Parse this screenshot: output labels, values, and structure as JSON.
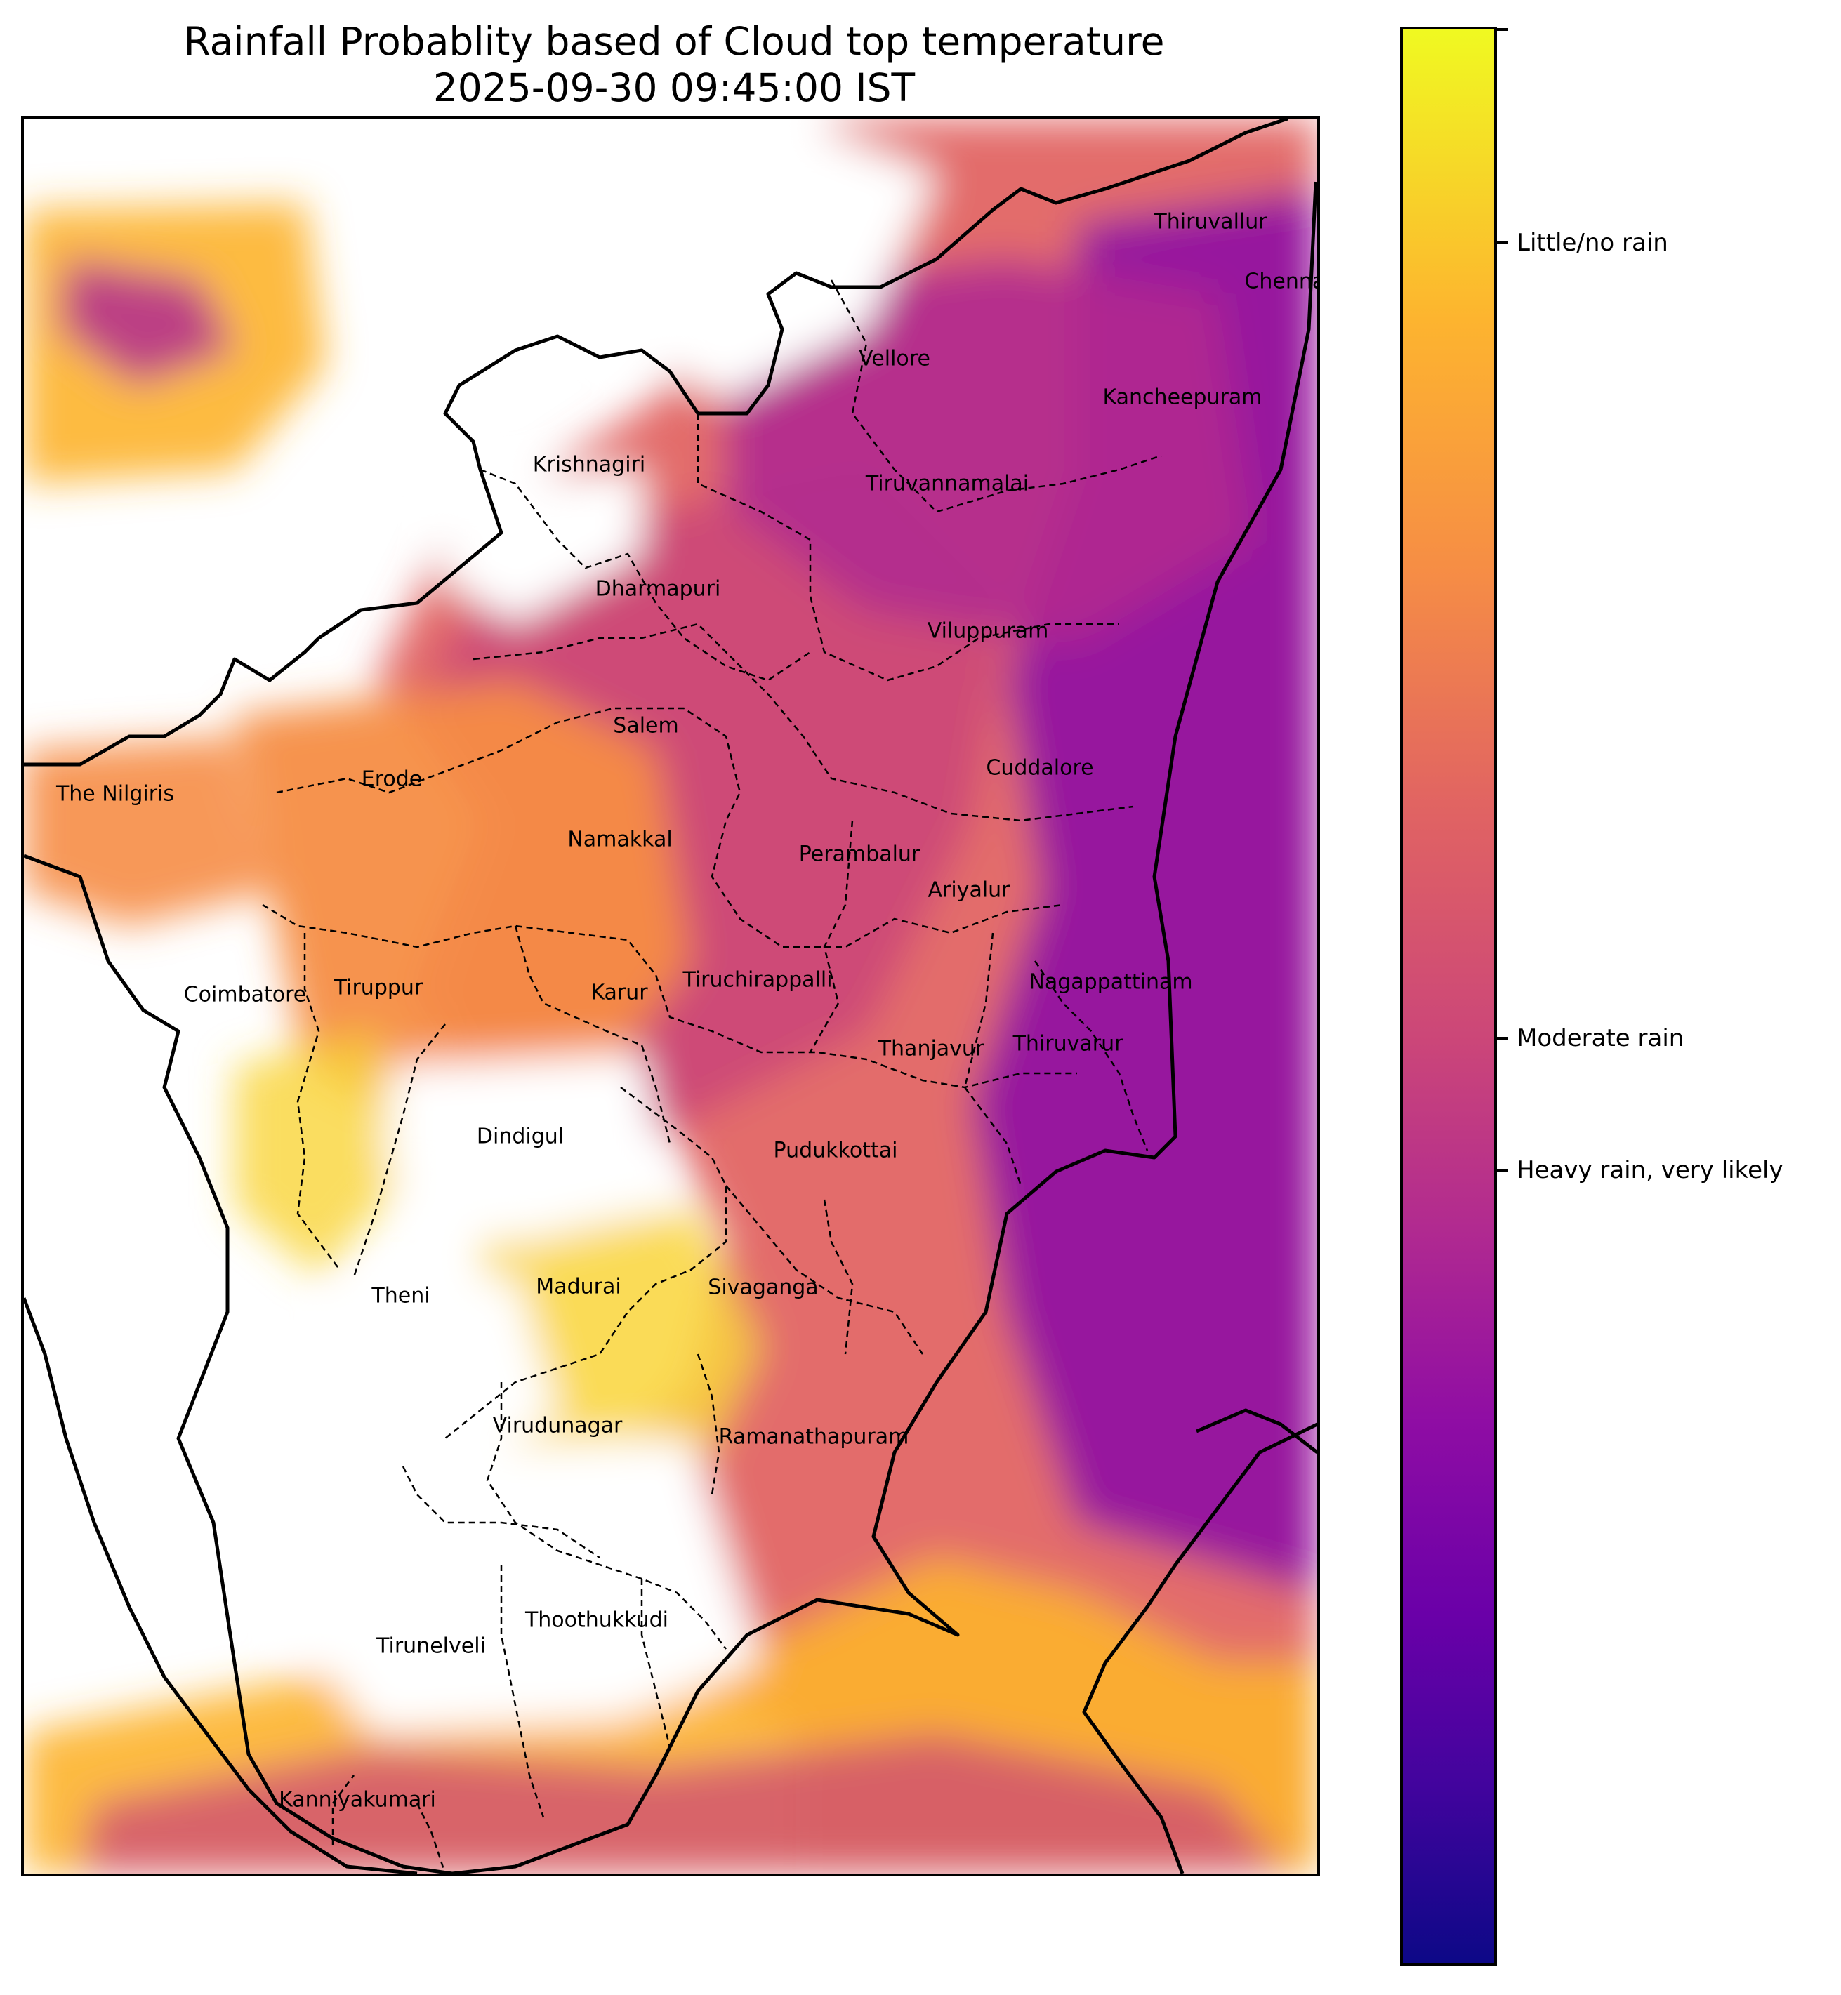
{
  "title": {
    "line1": "Rainfall Probablity based of Cloud top temperature",
    "line2": "2025-09-30 09:45:00 IST"
  },
  "colorbar": {
    "colors": [
      "#f0f921",
      "#fdb42f",
      "#f68d45",
      "#e16462",
      "#cc4778",
      "#b12a90",
      "#8f0da4",
      "#6a00a8",
      "#41049d",
      "#0d0887"
    ],
    "ticks": [
      {
        "label": "",
        "value": 1.0
      },
      {
        "label": "Little/no rain",
        "value": 0.89
      },
      {
        "label": "Moderate rain",
        "value": 0.476
      },
      {
        "label": "Heavy rain, very likely",
        "value": 0.408
      }
    ]
  },
  "districts": [
    "Thiruvallur",
    "Chennai",
    "Vellore",
    "Kancheepuram",
    "Krishnagiri",
    "Tiruvannamalai",
    "Dharmapuri",
    "Viluppuram",
    "Salem",
    "Cuddalore",
    "Erode",
    "The Nilgiris",
    "Namakkal",
    "Perambalur",
    "Ariyalur",
    "Nagappattinam",
    "Karur",
    "Tiruchirappalli",
    "Tiruppur",
    "Coimbatore",
    "Thanjavur",
    "Thiruvarur",
    "Dindigul",
    "Pudukkottai",
    "Theni",
    "Madurai",
    "Sivaganga",
    "Virudunagar",
    "Ramanathapuram",
    "Thoothukkudi",
    "Tirunelveli",
    "Kanniyakumari"
  ]
}
